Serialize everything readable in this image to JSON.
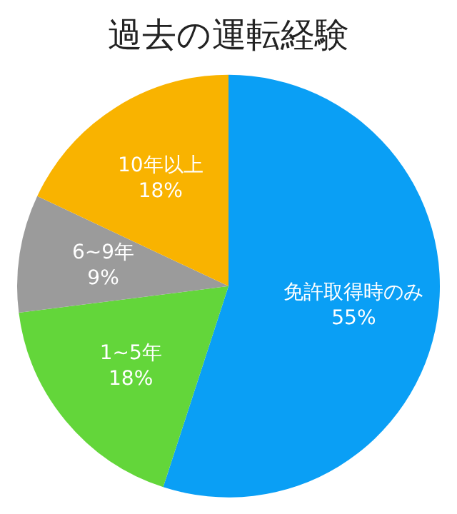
{
  "chart_data": {
    "type": "pie",
    "title": "過去の運転経験",
    "categories": [
      "免許取得時のみ",
      "1~5年",
      "6~9年",
      "10年以上"
    ],
    "values": [
      55,
      18,
      9,
      18
    ],
    "colors": [
      "#0a9ff5",
      "#63d63a",
      "#9b9b9b",
      "#f9b300"
    ],
    "value_labels": [
      "55%",
      "18%",
      "9%",
      "18%"
    ],
    "legend": false
  }
}
